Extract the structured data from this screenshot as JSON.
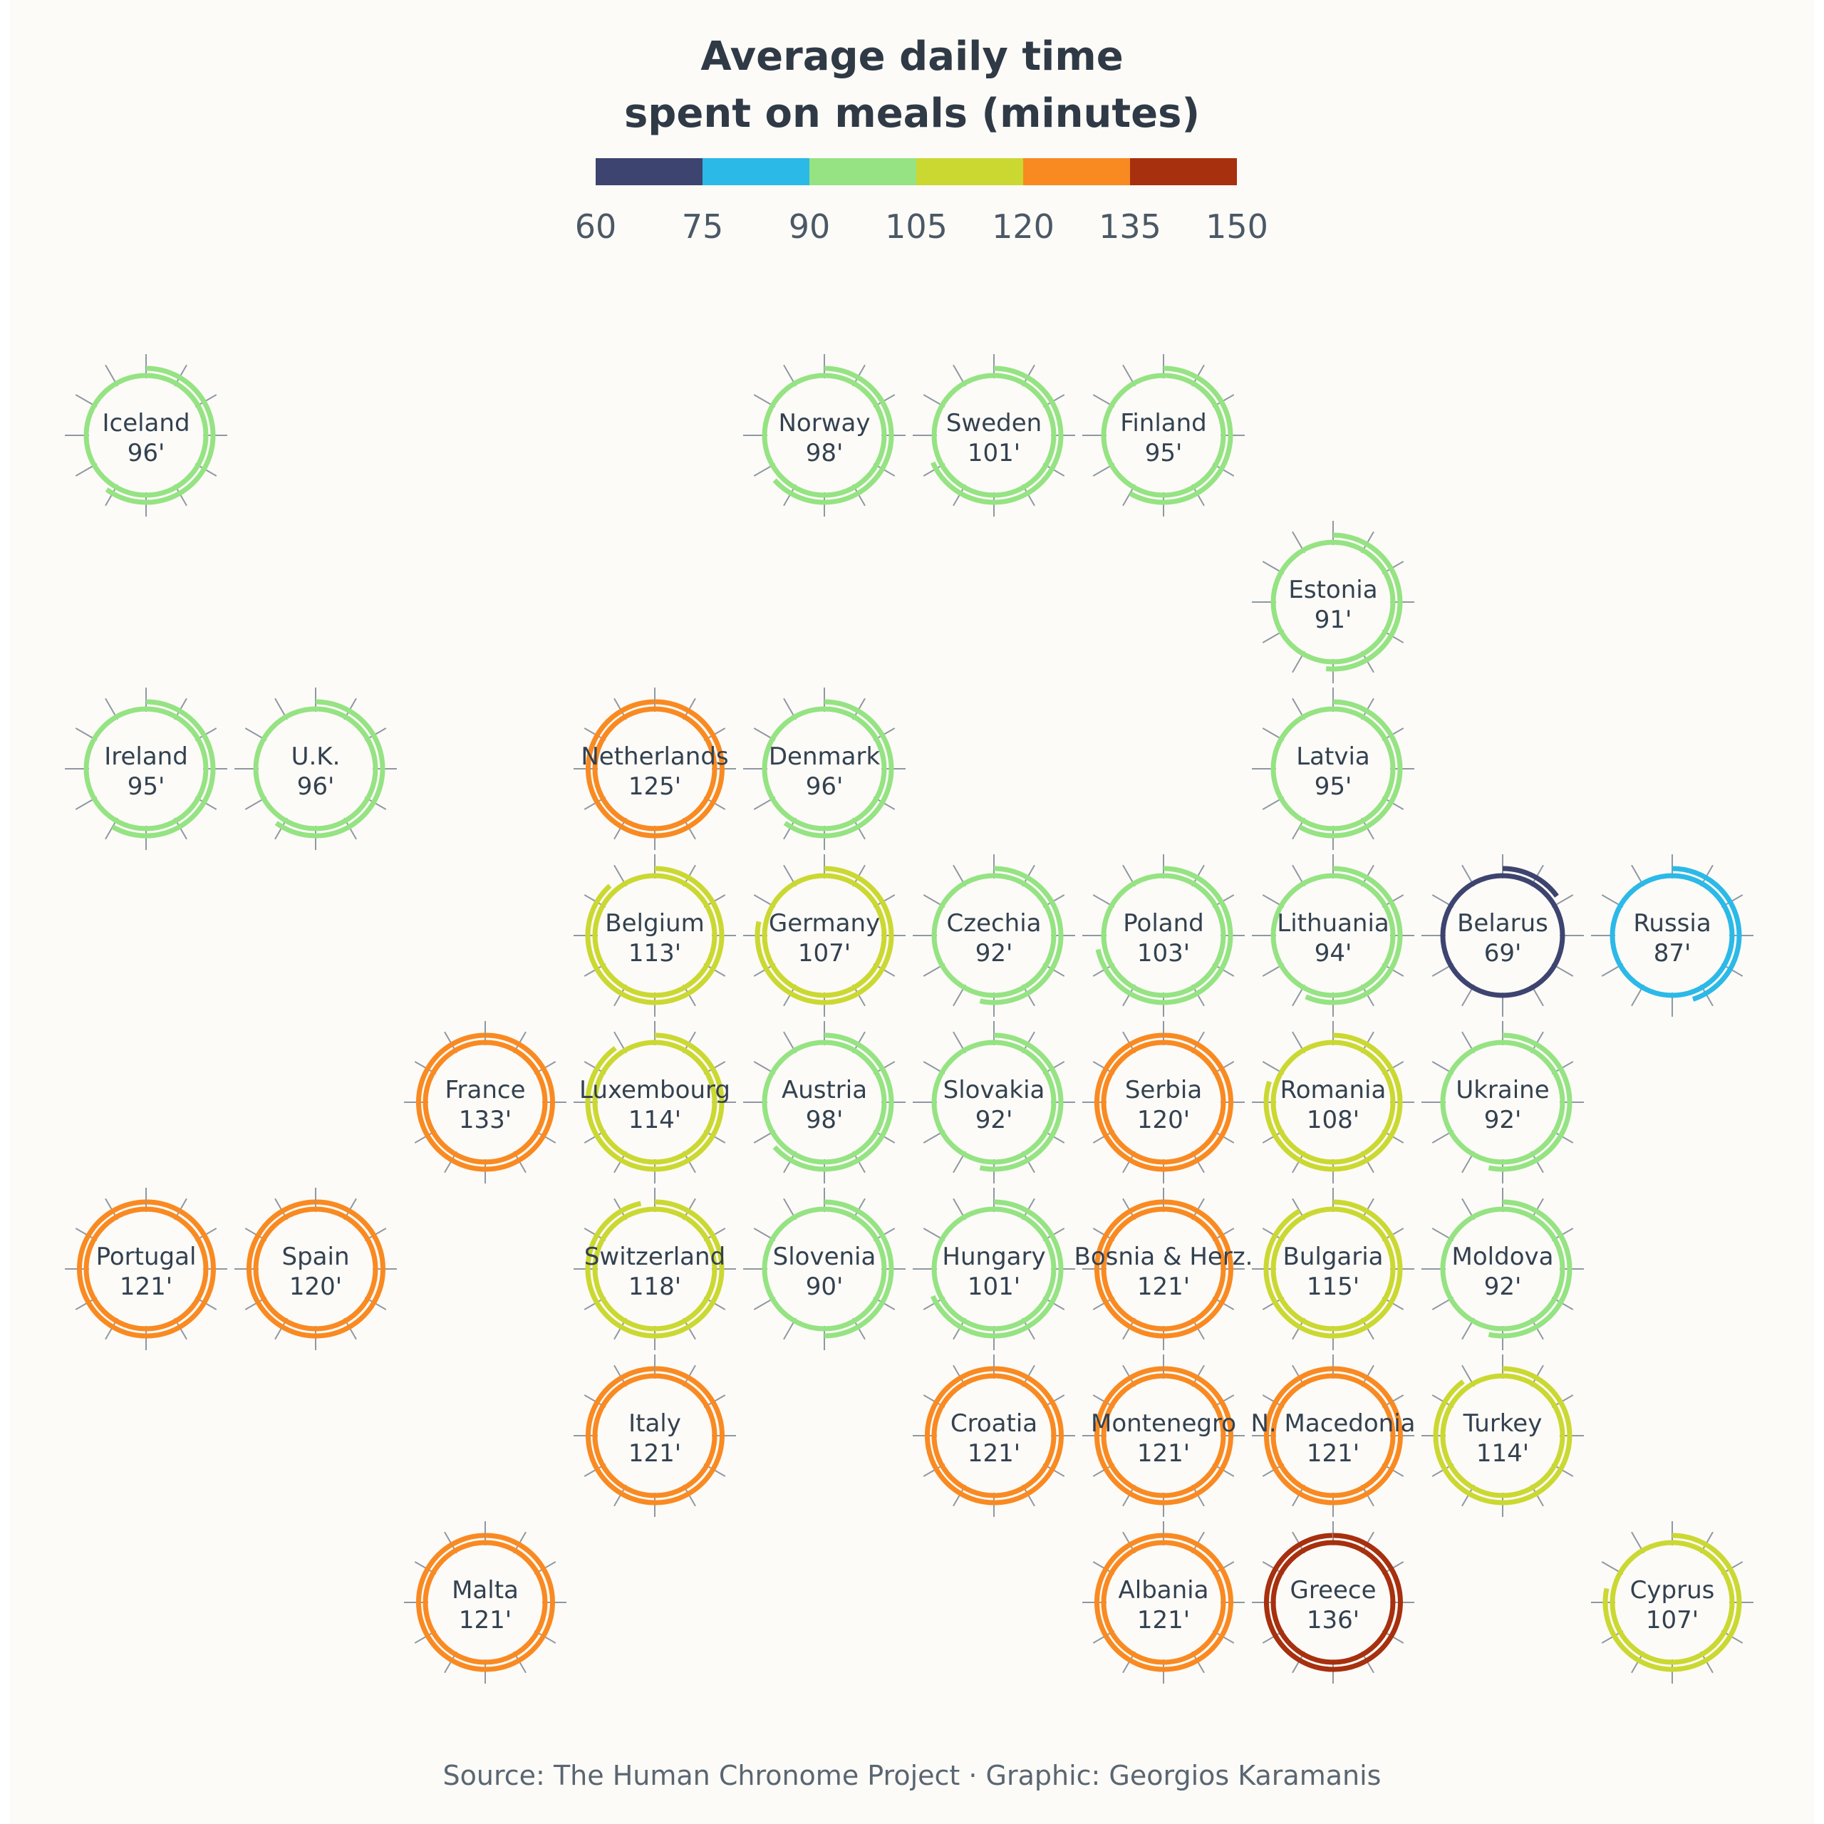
{
  "chart_data": {
    "type": "radial",
    "title": [
      "Average daily time",
      "spent on meals (minutes)"
    ],
    "unit_suffix": "'",
    "legend": {
      "ticks": [
        60,
        75,
        90,
        105,
        120,
        135,
        150
      ],
      "colors": [
        "#3e4470",
        "#2bb9e8",
        "#95e383",
        "#cbd832",
        "#f98a22",
        "#a7300e"
      ]
    },
    "countries": [
      {
        "name": "Iceland",
        "value": 96,
        "col": 0,
        "row": 0
      },
      {
        "name": "Norway",
        "value": 98,
        "col": 4,
        "row": 0
      },
      {
        "name": "Sweden",
        "value": 101,
        "col": 5,
        "row": 0
      },
      {
        "name": "Finland",
        "value": 95,
        "col": 6,
        "row": 0
      },
      {
        "name": "Estonia",
        "value": 91,
        "col": 7,
        "row": 1
      },
      {
        "name": "Ireland",
        "value": 95,
        "col": 0,
        "row": 2
      },
      {
        "name": "U.K.",
        "value": 96,
        "col": 1,
        "row": 2
      },
      {
        "name": "Netherlands",
        "value": 125,
        "col": 3,
        "row": 2
      },
      {
        "name": "Denmark",
        "value": 96,
        "col": 4,
        "row": 2
      },
      {
        "name": "Latvia",
        "value": 95,
        "col": 7,
        "row": 2
      },
      {
        "name": "Belgium",
        "value": 113,
        "col": 3,
        "row": 3
      },
      {
        "name": "Germany",
        "value": 107,
        "col": 4,
        "row": 3
      },
      {
        "name": "Czechia",
        "value": 92,
        "col": 5,
        "row": 3
      },
      {
        "name": "Poland",
        "value": 103,
        "col": 6,
        "row": 3
      },
      {
        "name": "Lithuania",
        "value": 94,
        "col": 7,
        "row": 3
      },
      {
        "name": "Belarus",
        "value": 69,
        "col": 8,
        "row": 3
      },
      {
        "name": "Russia",
        "value": 87,
        "col": 9,
        "row": 3
      },
      {
        "name": "France",
        "value": 133,
        "col": 2,
        "row": 4
      },
      {
        "name": "Luxembourg",
        "value": 114,
        "col": 3,
        "row": 4
      },
      {
        "name": "Austria",
        "value": 98,
        "col": 4,
        "row": 4
      },
      {
        "name": "Slovakia",
        "value": 92,
        "col": 5,
        "row": 4
      },
      {
        "name": "Serbia",
        "value": 120,
        "col": 6,
        "row": 4
      },
      {
        "name": "Romania",
        "value": 108,
        "col": 7,
        "row": 4
      },
      {
        "name": "Ukraine",
        "value": 92,
        "col": 8,
        "row": 4
      },
      {
        "name": "Portugal",
        "value": 121,
        "col": 0,
        "row": 5
      },
      {
        "name": "Spain",
        "value": 120,
        "col": 1,
        "row": 5
      },
      {
        "name": "Switzerland",
        "value": 118,
        "col": 3,
        "row": 5
      },
      {
        "name": "Slovenia",
        "value": 90,
        "col": 4,
        "row": 5
      },
      {
        "name": "Hungary",
        "value": 101,
        "col": 5,
        "row": 5
      },
      {
        "name": "Bosnia & Herz.",
        "value": 121,
        "col": 6,
        "row": 5
      },
      {
        "name": "Bulgaria",
        "value": 115,
        "col": 7,
        "row": 5
      },
      {
        "name": "Moldova",
        "value": 92,
        "col": 8,
        "row": 5
      },
      {
        "name": "Italy",
        "value": 121,
        "col": 3,
        "row": 6
      },
      {
        "name": "Croatia",
        "value": 121,
        "col": 5,
        "row": 6
      },
      {
        "name": "Montenegro",
        "value": 121,
        "col": 6,
        "row": 6
      },
      {
        "name": "N. Macedonia",
        "value": 121,
        "col": 7,
        "row": 6
      },
      {
        "name": "Turkey",
        "value": 114,
        "col": 8,
        "row": 6
      },
      {
        "name": "Malta",
        "value": 121,
        "col": 2,
        "row": 7
      },
      {
        "name": "Albania",
        "value": 121,
        "col": 6,
        "row": 7
      },
      {
        "name": "Greece",
        "value": 136,
        "col": 7,
        "row": 7
      },
      {
        "name": "Cyprus",
        "value": 107,
        "col": 9,
        "row": 7
      }
    ]
  },
  "source": "Source: The Human Chronome Project · Graphic: Georgios Karamanis"
}
